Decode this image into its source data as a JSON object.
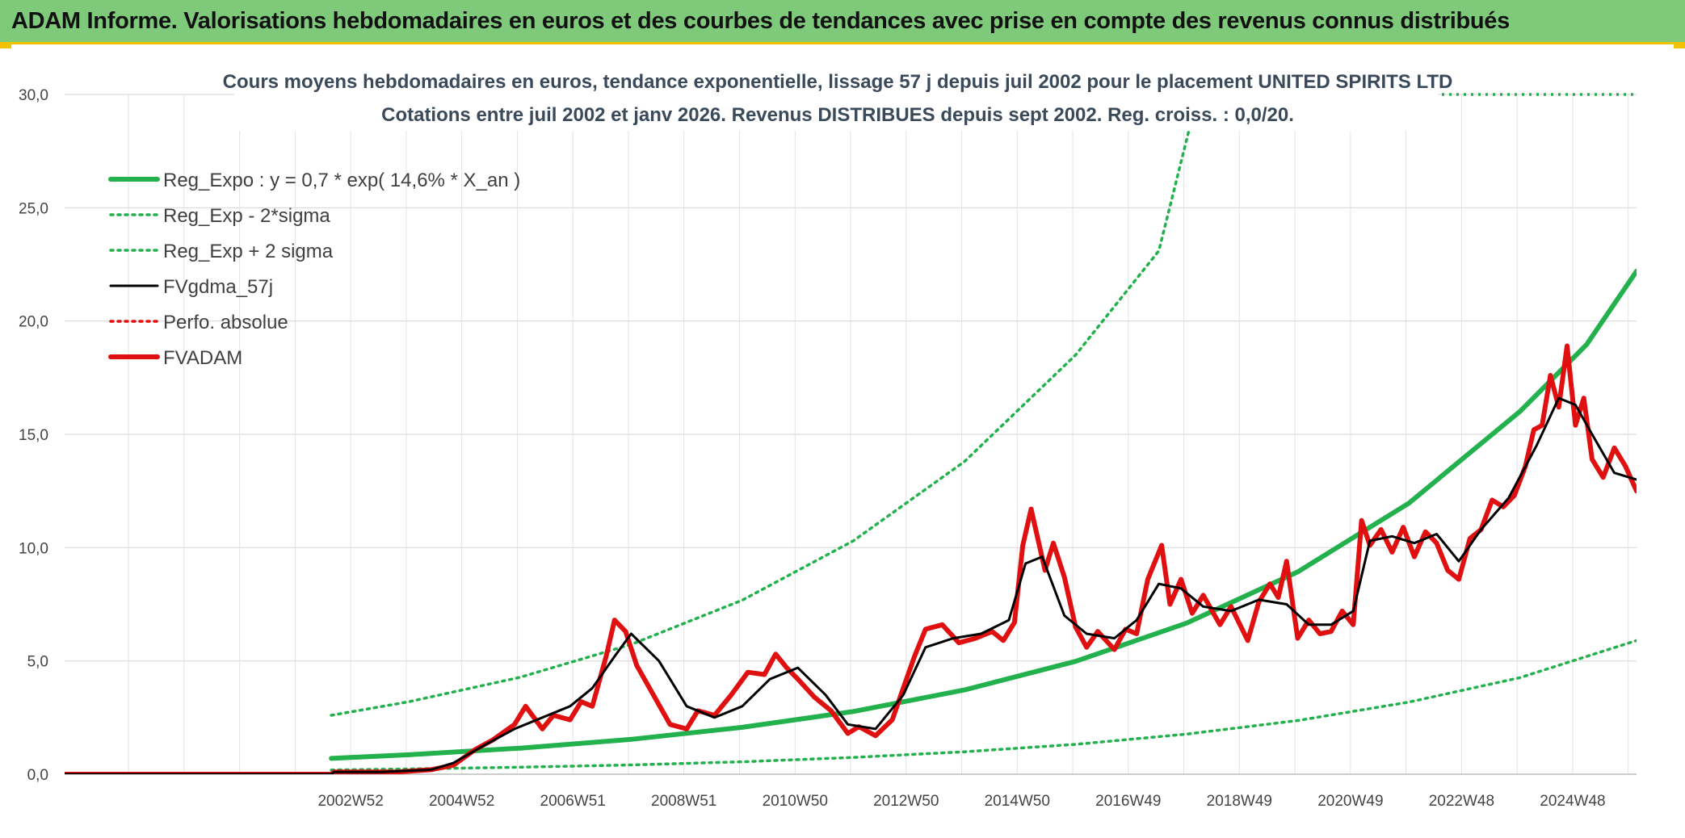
{
  "header": {
    "title": "ADAM Informe. Valorisations hebdomadaires en euros et des courbes de tendances avec prise en compte des revenus connus distribués"
  },
  "chart_data": {
    "type": "line",
    "title_line1": "Cours moyens hebdomadaires en euros, tendance exponentielle, lissage 57 j depuis juil 2002 pour le placement UNITED SPIRITS LTD",
    "title_line2": "Cotations entre juil 2002 et janv 2026. Revenus DISTRIBUES depuis sept 2002. Reg. croiss. : 0,0/20.",
    "xlabel": "",
    "ylabel": "",
    "ylim": [
      0,
      30
    ],
    "xlim": [
      1997.8,
      2026.1
    ],
    "y_ticks": [
      {
        "value": 0,
        "label": "0,0"
      },
      {
        "value": 5,
        "label": "5,0"
      },
      {
        "value": 10,
        "label": "10,0"
      },
      {
        "value": 15,
        "label": "15,0"
      },
      {
        "value": 20,
        "label": "20,0"
      },
      {
        "value": 25,
        "label": "25,0"
      },
      {
        "value": 30,
        "label": "30,0"
      }
    ],
    "x_ticks": [
      {
        "value": 2002.95,
        "label": "2002W52"
      },
      {
        "value": 2004.95,
        "label": "2004W52"
      },
      {
        "value": 2006.95,
        "label": "2006W51"
      },
      {
        "value": 2008.95,
        "label": "2008W51"
      },
      {
        "value": 2010.95,
        "label": "2010W50"
      },
      {
        "value": 2012.95,
        "label": "2012W50"
      },
      {
        "value": 2014.95,
        "label": "2014W50"
      },
      {
        "value": 2016.95,
        "label": "2016W49"
      },
      {
        "value": 2018.95,
        "label": "2018W49"
      },
      {
        "value": 2020.95,
        "label": "2020W49"
      },
      {
        "value": 2022.95,
        "label": "2022W48"
      },
      {
        "value": 2024.95,
        "label": "2024W48"
      }
    ],
    "grid": true,
    "legend_position": "top-left",
    "series": [
      {
        "name": "Reg_Expo : y = 0,7 * exp( 14,6% *  X_an )",
        "color": "#22b14c",
        "style": "solid-thick",
        "x": [
          2002.6,
          2004.0,
          2006.0,
          2008.0,
          2010.0,
          2012.0,
          2014.0,
          2016.0,
          2018.0,
          2020.0,
          2022.0,
          2024.0,
          2025.2,
          2026.1
        ],
        "y": [
          0.7,
          0.86,
          1.15,
          1.54,
          2.07,
          2.77,
          3.72,
          4.98,
          6.67,
          8.93,
          11.96,
          16.01,
          18.96,
          22.2
        ]
      },
      {
        "name": "Reg_Exp - 2*sigma",
        "color": "#22b14c",
        "style": "dotted",
        "x": [
          2002.6,
          2004.0,
          2006.0,
          2008.0,
          2010.0,
          2012.0,
          2014.0,
          2016.0,
          2018.0,
          2020.0,
          2022.0,
          2024.0,
          2026.1
        ],
        "y": [
          0.19,
          0.23,
          0.31,
          0.41,
          0.55,
          0.74,
          0.99,
          1.32,
          1.77,
          2.37,
          3.18,
          4.26,
          5.9
        ]
      },
      {
        "name": "Reg_Exp + 2 sigma",
        "color": "#22b14c",
        "style": "dotted",
        "x": [
          2002.6,
          2004.0,
          2006.0,
          2008.0,
          2010.0,
          2012.0,
          2014.0,
          2016.0,
          2017.5,
          2018.0,
          2018.2
        ],
        "y": [
          2.6,
          3.2,
          4.28,
          5.73,
          7.68,
          10.3,
          13.8,
          18.5,
          23.1,
          28.0,
          30.0
        ]
      },
      {
        "name": "FVgdma_57j",
        "color": "#000000",
        "style": "solid",
        "x": [
          1997.8,
          2002.6,
          2002.65,
          2003.5,
          2004.4,
          2004.8,
          2005.3,
          2005.9,
          2006.4,
          2006.9,
          2007.3,
          2007.7,
          2008.0,
          2008.5,
          2009.0,
          2009.5,
          2010.0,
          2010.5,
          2011.0,
          2011.5,
          2011.9,
          2012.4,
          2012.9,
          2013.3,
          2013.8,
          2014.3,
          2014.8,
          2015.1,
          2015.4,
          2015.8,
          2016.2,
          2016.7,
          2017.1,
          2017.5,
          2017.9,
          2018.3,
          2018.8,
          2019.3,
          2019.8,
          2020.2,
          2020.6,
          2021.0,
          2021.3,
          2021.7,
          2022.1,
          2022.5,
          2022.9,
          2023.3,
          2023.8,
          2024.3,
          2024.7,
          2025.0,
          2025.3,
          2025.7,
          2026.1
        ],
        "y": [
          0,
          0,
          0.1,
          0.1,
          0.2,
          0.5,
          1.2,
          2.0,
          2.5,
          3.0,
          3.8,
          5.2,
          6.2,
          5.0,
          3.0,
          2.5,
          3.0,
          4.2,
          4.7,
          3.5,
          2.2,
          2.0,
          3.5,
          5.6,
          6.0,
          6.2,
          6.8,
          9.3,
          9.6,
          7.0,
          6.2,
          6.0,
          6.8,
          8.4,
          8.2,
          7.4,
          7.2,
          7.7,
          7.5,
          6.6,
          6.6,
          7.2,
          10.3,
          10.5,
          10.2,
          10.6,
          9.4,
          10.8,
          12.2,
          14.5,
          16.6,
          16.3,
          15.0,
          13.3,
          13.0
        ]
      },
      {
        "name": "Perfo. absolue",
        "color": "#e01010",
        "style": "dotted",
        "x": [
          1997.8,
          2002.6
        ],
        "y": [
          0,
          0
        ]
      },
      {
        "name": "FVADAM",
        "color": "#e01010",
        "style": "solid-thick",
        "x": [
          1997.8,
          2002.6,
          2002.65,
          2003.2,
          2003.8,
          2004.4,
          2004.8,
          2005.2,
          2005.5,
          2005.9,
          2006.1,
          2006.4,
          2006.6,
          2006.9,
          2007.1,
          2007.3,
          2007.55,
          2007.7,
          2007.9,
          2008.1,
          2008.4,
          2008.7,
          2009.0,
          2009.2,
          2009.5,
          2009.8,
          2010.1,
          2010.4,
          2010.6,
          2010.8,
          2011.0,
          2011.3,
          2011.6,
          2011.9,
          2012.1,
          2012.4,
          2012.7,
          2012.9,
          2013.1,
          2013.3,
          2013.6,
          2013.9,
          2014.2,
          2014.5,
          2014.7,
          2014.9,
          2015.05,
          2015.2,
          2015.45,
          2015.6,
          2015.8,
          2016.0,
          2016.2,
          2016.4,
          2016.7,
          2016.9,
          2017.1,
          2017.3,
          2017.55,
          2017.7,
          2017.9,
          2018.1,
          2018.3,
          2018.6,
          2018.8,
          2019.1,
          2019.3,
          2019.5,
          2019.65,
          2019.8,
          2020.0,
          2020.2,
          2020.4,
          2020.6,
          2020.8,
          2021.0,
          2021.15,
          2021.3,
          2021.5,
          2021.7,
          2021.9,
          2022.1,
          2022.3,
          2022.5,
          2022.7,
          2022.9,
          2023.1,
          2023.3,
          2023.5,
          2023.7,
          2023.9,
          2024.1,
          2024.25,
          2024.4,
          2024.55,
          2024.7,
          2024.85,
          2025.0,
          2025.15,
          2025.3,
          2025.5,
          2025.7,
          2025.9,
          2026.1
        ],
        "y": [
          0,
          0,
          0.1,
          0.1,
          0.1,
          0.2,
          0.4,
          1.1,
          1.5,
          2.2,
          3.0,
          2.0,
          2.6,
          2.4,
          3.2,
          3.0,
          5.2,
          6.8,
          6.3,
          4.8,
          3.5,
          2.2,
          2.0,
          2.8,
          2.6,
          3.5,
          4.5,
          4.4,
          5.3,
          4.7,
          4.2,
          3.4,
          2.8,
          1.8,
          2.1,
          1.7,
          2.4,
          3.8,
          5.2,
          6.4,
          6.6,
          5.8,
          6.0,
          6.3,
          5.9,
          6.7,
          10.1,
          11.7,
          9.0,
          10.2,
          8.7,
          6.5,
          5.6,
          6.3,
          5.5,
          6.4,
          6.2,
          8.6,
          10.1,
          7.5,
          8.6,
          7.1,
          7.9,
          6.6,
          7.4,
          5.9,
          7.6,
          8.4,
          7.8,
          9.4,
          6.0,
          6.8,
          6.2,
          6.3,
          7.2,
          6.6,
          11.2,
          10.1,
          10.8,
          9.8,
          10.9,
          9.6,
          10.7,
          10.2,
          9.0,
          8.6,
          10.4,
          10.8,
          12.1,
          11.8,
          12.3,
          13.6,
          15.2,
          15.4,
          17.6,
          16.2,
          18.9,
          15.4,
          16.6,
          13.9,
          13.1,
          14.4,
          13.6,
          12.5
        ]
      }
    ]
  }
}
